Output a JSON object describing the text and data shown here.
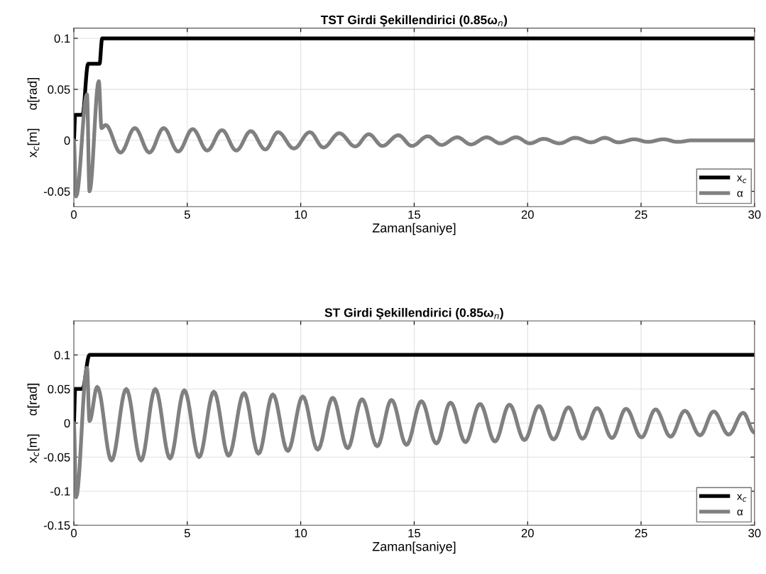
{
  "chart_data": [
    {
      "type": "line",
      "title": "TST Girdi Şekillendirici (0.85ω$_{n}$)",
      "xlabel": "Zaman[saniye]",
      "ylabel": "x$_{c}$[m]     α[rad]",
      "xlim": [
        0,
        30
      ],
      "xticks": [
        0,
        5,
        10,
        15,
        20,
        25,
        30
      ],
      "ylim": [
        -0.065,
        0.11
      ],
      "yticks": [
        -0.05,
        0,
        0.05,
        0.1
      ],
      "grid": true,
      "legend": "bottom right",
      "series": [
        {
          "name": "x$_{c}$",
          "color": "#000000",
          "x": [
            0,
            0.06,
            0.38,
            0.63,
            1.13,
            1.25,
            30
          ],
          "values": [
            0,
            0.025,
            0.025,
            0.075,
            0.075,
            0.1,
            0.1
          ]
        },
        {
          "name": "α",
          "color": "#808080",
          "x": [
            0,
            0.1,
            0.58,
            0.69,
            1.1,
            1.22,
            1.4,
            2.06,
            2.69,
            3.33,
            3.96,
            4.6,
            5.24,
            5.88,
            6.53,
            7.16,
            7.8,
            8.44,
            9.0,
            9.7,
            10.4,
            11.0,
            11.7,
            12.4,
            13.0,
            13.6,
            14.3,
            14.9,
            15.6,
            16.2,
            16.9,
            17.5,
            18.2,
            18.8,
            19.5,
            20.1,
            20.7,
            21.4,
            22.1,
            22.8,
            23.4,
            24.0,
            24.7,
            25.3,
            26.0,
            26.6,
            27.3,
            28,
            30
          ],
          "values": [
            0,
            -0.055,
            0.045,
            -0.05,
            0.058,
            0.012,
            0.015,
            -0.012,
            0.012,
            -0.012,
            0.012,
            -0.011,
            0.011,
            -0.01,
            0.01,
            -0.01,
            0.009,
            -0.009,
            0.008,
            -0.008,
            0.008,
            -0.007,
            0.007,
            -0.006,
            0.006,
            -0.0055,
            0.005,
            -0.0055,
            0.004,
            -0.0045,
            0.003,
            -0.004,
            0.003,
            -0.003,
            0.003,
            -0.003,
            0.0015,
            -0.003,
            0.0025,
            -0.002,
            0.0025,
            -0.002,
            0.001,
            -0.0015,
            0.001,
            -0.0015,
            0,
            0,
            0
          ]
        }
      ]
    },
    {
      "type": "line",
      "title": "ST Girdi Şekillendirici (0.85ω$_{n}$)",
      "xlabel": "Zaman[saniye]",
      "ylabel": "x$_{c}$[m]     α[rad]",
      "xlim": [
        0,
        30
      ],
      "xticks": [
        0,
        5,
        10,
        15,
        20,
        25,
        30
      ],
      "ylim": [
        -0.15,
        0.15
      ],
      "yticks": [
        -0.15,
        -0.1,
        -0.05,
        0,
        0.05,
        0.1
      ],
      "grid": true,
      "legend": "bottom right",
      "series": [
        {
          "name": "x$_{c}$",
          "color": "#000000",
          "x": [
            0,
            0.06,
            0.38,
            0.69,
            30
          ],
          "values": [
            0,
            0.05,
            0.05,
            0.1,
            0.1
          ]
        },
        {
          "name": "α",
          "color": "#808080",
          "x": [
            0,
            0.1,
            0.58,
            0.69,
            1.03,
            1.66,
            2.31,
            2.96,
            3.59,
            4.24,
            4.87,
            5.52,
            6.17,
            6.82,
            7.5,
            8.14,
            8.77,
            9.43,
            10.09,
            10.75,
            11.41,
            12.07,
            12.7,
            13.37,
            14.0,
            14.66,
            15.32,
            15.98,
            16.6,
            17.26,
            17.9,
            18.56,
            19.2,
            19.86,
            20.5,
            21.14,
            21.8,
            22.42,
            23.06,
            23.72,
            24.34,
            25.02,
            25.64,
            26.3,
            26.93,
            27.6,
            28.2,
            28.86,
            29.5,
            30
          ],
          "values": [
            0,
            -0.109,
            0.081,
            0.003,
            0.053,
            -0.055,
            0.05,
            -0.055,
            0.05,
            -0.052,
            0.048,
            -0.05,
            0.046,
            -0.048,
            0.044,
            -0.045,
            0.042,
            -0.041,
            0.039,
            -0.039,
            0.037,
            -0.037,
            0.035,
            -0.034,
            0.034,
            -0.032,
            0.032,
            -0.03,
            0.03,
            -0.028,
            0.028,
            -0.027,
            0.027,
            -0.025,
            0.025,
            -0.024,
            0.023,
            -0.023,
            0.022,
            -0.022,
            0.021,
            -0.021,
            0.02,
            -0.02,
            0.018,
            -0.018,
            0.017,
            -0.017,
            0.015,
            -0.014
          ]
        }
      ]
    }
  ]
}
